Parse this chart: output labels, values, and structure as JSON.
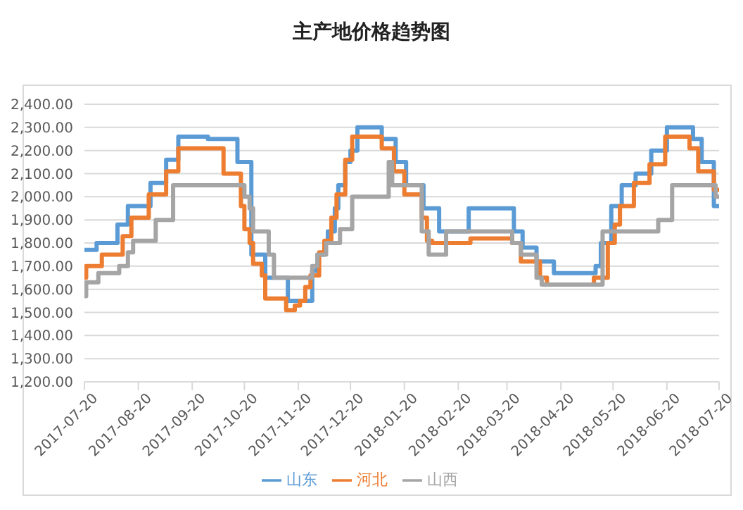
{
  "chart_data": {
    "type": "step",
    "title": "主产地价格趋势图",
    "series": [
      {
        "name": "山东",
        "color": "#5b9bd5",
        "x": [
          "2017-07-20",
          "2017-07-27",
          "2017-08-08",
          "2017-08-14",
          "2017-08-27",
          "2017-09-05",
          "2017-09-12",
          "2017-09-29",
          "2017-10-16",
          "2017-10-24",
          "2017-11-01",
          "2017-11-14",
          "2017-11-28",
          "2017-12-01",
          "2017-12-05",
          "2017-12-07",
          "2017-12-11",
          "2017-12-13",
          "2017-12-17",
          "2017-12-20",
          "2017-12-24",
          "2018-01-07",
          "2018-01-15",
          "2018-01-21",
          "2018-01-31",
          "2018-02-09",
          "2018-02-26",
          "2018-03-24",
          "2018-03-29",
          "2018-04-06",
          "2018-04-16",
          "2018-05-10",
          "2018-05-13",
          "2018-05-19",
          "2018-05-25",
          "2018-06-02",
          "2018-06-11",
          "2018-06-20",
          "2018-07-05",
          "2018-07-10",
          "2018-07-17",
          "2018-07-20"
        ],
        "values": [
          1770,
          1800,
          1880,
          1960,
          2060,
          2160,
          2260,
          2250,
          2150,
          1750,
          1650,
          1550,
          1680,
          1750,
          1800,
          1850,
          1950,
          2050,
          2150,
          2200,
          2300,
          2250,
          2150,
          2050,
          1950,
          1850,
          1950,
          1850,
          1780,
          1720,
          1670,
          1700,
          1800,
          1960,
          2050,
          2100,
          2200,
          2300,
          2250,
          2150,
          1960,
          1960
        ]
      },
      {
        "name": "河北",
        "color": "#ed7d31",
        "x": [
          "2017-07-20",
          "2017-07-21",
          "2017-07-30",
          "2017-08-11",
          "2017-08-16",
          "2017-08-26",
          "2017-09-05",
          "2017-09-12",
          "2017-10-08",
          "2017-10-18",
          "2017-10-20",
          "2017-10-23",
          "2017-10-25",
          "2017-10-30",
          "2017-11-01",
          "2017-11-13",
          "2017-11-18",
          "2017-11-21",
          "2017-11-24",
          "2017-11-27",
          "2017-12-02",
          "2017-12-05",
          "2017-12-09",
          "2017-12-12",
          "2017-12-17",
          "2017-12-21",
          "2018-01-07",
          "2018-01-14",
          "2018-01-20",
          "2018-01-30",
          "2018-02-02",
          "2018-02-05",
          "2018-02-27",
          "2018-03-23",
          "2018-03-28",
          "2018-04-08",
          "2018-04-12",
          "2018-05-09",
          "2018-05-17",
          "2018-05-21",
          "2018-05-24",
          "2018-06-01",
          "2018-06-10",
          "2018-06-19",
          "2018-07-03",
          "2018-07-08",
          "2018-07-17",
          "2018-07-20"
        ],
        "values": [
          1650,
          1700,
          1750,
          1830,
          1910,
          2010,
          2110,
          2210,
          2100,
          1960,
          1860,
          1800,
          1710,
          1660,
          1560,
          1510,
          1530,
          1550,
          1610,
          1660,
          1760,
          1810,
          1910,
          2010,
          2160,
          2260,
          2210,
          2110,
          2010,
          1910,
          1810,
          1800,
          1820,
          1800,
          1720,
          1650,
          1620,
          1650,
          1800,
          1880,
          1960,
          2060,
          2140,
          2260,
          2210,
          2110,
          2030,
          2030
        ]
      },
      {
        "name": "山西",
        "color": "#a5a5a5",
        "x": [
          "2017-07-20",
          "2017-07-21",
          "2017-07-28",
          "2017-08-09",
          "2017-08-14",
          "2017-08-17",
          "2017-08-30",
          "2017-09-09",
          "2017-10-20",
          "2017-10-23",
          "2017-10-25",
          "2017-11-03",
          "2017-11-06",
          "2017-11-28",
          "2017-12-01",
          "2017-12-06",
          "2017-12-14",
          "2017-12-21",
          "2018-01-11",
          "2018-01-13",
          "2018-01-30",
          "2018-02-03",
          "2018-02-13",
          "2018-03-23",
          "2018-03-28",
          "2018-04-06",
          "2018-04-09",
          "2018-05-14",
          "2018-06-15",
          "2018-06-23",
          "2018-07-18",
          "2018-07-20"
        ],
        "values": [
          1570,
          1630,
          1670,
          1700,
          1760,
          1810,
          1900,
          2050,
          2000,
          1950,
          1850,
          1750,
          1650,
          1700,
          1750,
          1800,
          1860,
          2000,
          2150,
          2050,
          1850,
          1750,
          1850,
          1800,
          1750,
          1650,
          1620,
          1850,
          1900,
          2050,
          2000,
          2000
        ]
      }
    ],
    "xlim": [
      "2017-07-20",
      "2018-07-20"
    ],
    "xticks": [
      "2017-07-20",
      "2017-08-20",
      "2017-09-20",
      "2017-10-20",
      "2017-11-20",
      "2017-12-20",
      "2018-01-20",
      "2018-02-20",
      "2018-03-20",
      "2018-04-20",
      "2018-05-20",
      "2018-06-20",
      "2018-07-20"
    ],
    "ylim": [
      1200,
      2400
    ],
    "yticks": [
      {
        "value": 1200,
        "label": "1,200.00"
      },
      {
        "value": 1300,
        "label": "1,300.00"
      },
      {
        "value": 1400,
        "label": "1,400.00"
      },
      {
        "value": 1500,
        "label": "1,500.00"
      },
      {
        "value": 1600,
        "label": "1,600.00"
      },
      {
        "value": 1700,
        "label": "1,700.00"
      },
      {
        "value": 1800,
        "label": "1,800.00"
      },
      {
        "value": 1900,
        "label": "1,900.00"
      },
      {
        "value": 2000,
        "label": "2,000.00"
      },
      {
        "value": 2100,
        "label": "2,100.00"
      },
      {
        "value": 2200,
        "label": "2,200.00"
      },
      {
        "value": 2300,
        "label": "2,300.00"
      },
      {
        "value": 2400,
        "label": "2,400.00"
      }
    ],
    "grid": "y",
    "legend": "bottom",
    "marker": "none",
    "line_style": "solid"
  }
}
